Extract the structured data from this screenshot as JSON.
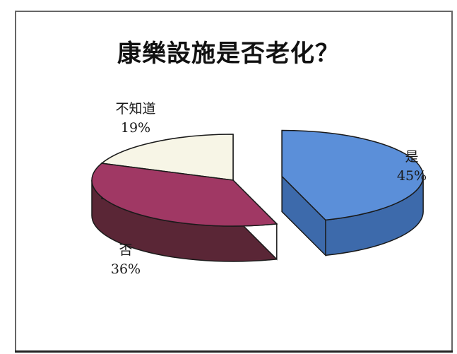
{
  "chart_data": {
    "type": "pie",
    "title": "康樂設施是否老化？",
    "categories": [
      "是",
      "否",
      "不知道"
    ],
    "values": [
      45,
      36,
      19
    ],
    "labels": [
      "45%",
      "36%",
      "19%"
    ],
    "colors": [
      "#5b8fd9",
      "#a03864",
      "#f7f5e6"
    ],
    "side_colors": [
      "#3d6aab",
      "#5a2636",
      "#9e9e8a"
    ],
    "exploded": [
      true,
      false,
      false
    ],
    "three_d": true,
    "legend": "none"
  }
}
